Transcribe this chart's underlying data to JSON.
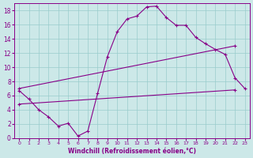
{
  "xlabel": "Windchill (Refroidissement éolien,°C)",
  "bg_color": "#cce8e8",
  "line_color": "#880088",
  "grid_color": "#99cccc",
  "xlim": [
    -0.5,
    23.5
  ],
  "ylim": [
    0,
    19
  ],
  "xticks": [
    0,
    1,
    2,
    3,
    4,
    5,
    6,
    7,
    8,
    9,
    10,
    11,
    12,
    13,
    14,
    15,
    16,
    17,
    18,
    19,
    20,
    21,
    22,
    23
  ],
  "yticks": [
    0,
    2,
    4,
    6,
    8,
    10,
    12,
    14,
    16,
    18
  ],
  "series1_x": [
    0,
    1,
    2,
    3,
    4,
    5,
    6,
    7,
    8,
    9,
    10,
    11,
    12,
    13,
    14,
    15,
    16,
    17,
    18,
    19,
    20,
    21,
    22,
    23
  ],
  "series1_y": [
    6.7,
    5.5,
    4.0,
    3.0,
    1.7,
    2.1,
    0.3,
    1.0,
    6.3,
    11.5,
    15.0,
    16.8,
    17.2,
    18.5,
    18.6,
    17.0,
    15.9,
    15.9,
    14.2,
    13.3,
    12.5,
    11.8,
    8.5,
    7.0
  ],
  "series2_x": [
    0,
    22
  ],
  "series2_y": [
    7.0,
    13.0
  ],
  "series3_x": [
    0,
    22
  ],
  "series3_y": [
    4.8,
    6.8
  ]
}
